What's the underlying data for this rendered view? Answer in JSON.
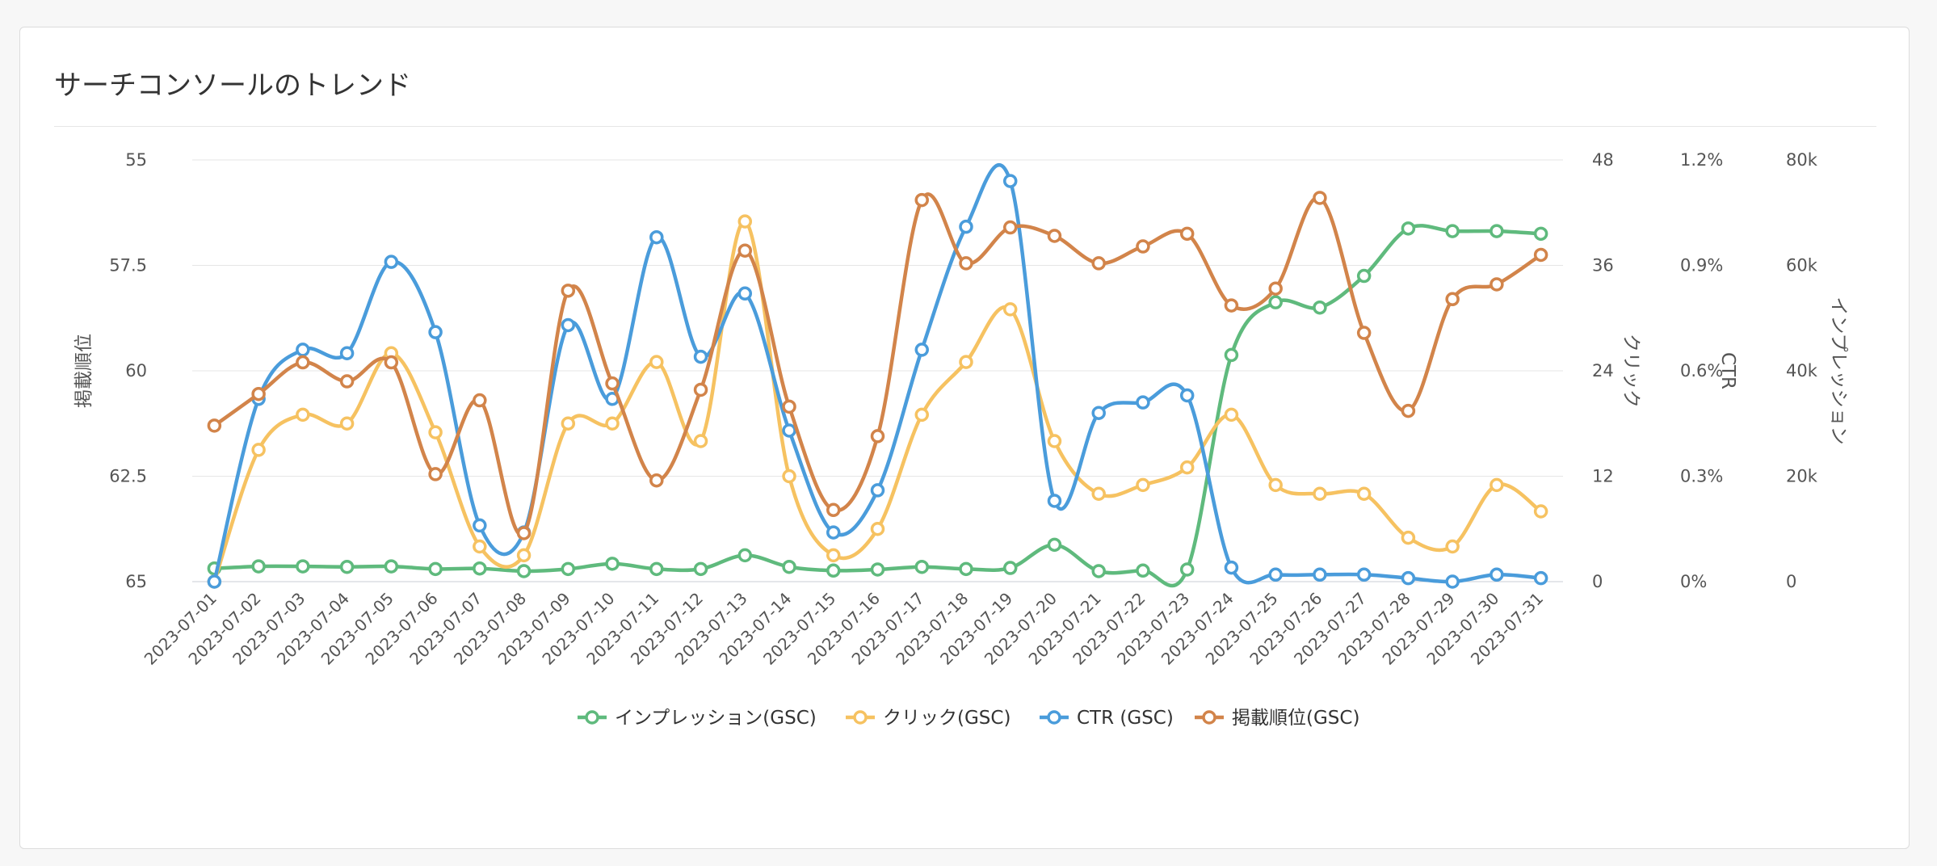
{
  "card": {
    "title": "サーチコンソールのトレンド"
  },
  "chart_data": {
    "type": "line",
    "curve": "smooth",
    "markers": "hollow-circle",
    "grid": true,
    "legend_position": "bottom",
    "categories": [
      "2023-07-01",
      "2023-07-02",
      "2023-07-03",
      "2023-07-04",
      "2023-07-05",
      "2023-07-06",
      "2023-07-07",
      "2023-07-08",
      "2023-07-09",
      "2023-07-10",
      "2023-07-11",
      "2023-07-12",
      "2023-07-13",
      "2023-07-14",
      "2023-07-15",
      "2023-07-16",
      "2023-07-17",
      "2023-07-18",
      "2023-07-19",
      "2023-07-20",
      "2023-07-21",
      "2023-07-22",
      "2023-07-23",
      "2023-07-24",
      "2023-07-25",
      "2023-07-26",
      "2023-07-27",
      "2023-07-28",
      "2023-07-29",
      "2023-07-30",
      "2023-07-31"
    ],
    "axes": {
      "left": {
        "label": "掲載順位",
        "range": [
          55,
          65
        ],
        "reversed": true,
        "ticks": [
          "55",
          "57.5",
          "60",
          "62.5",
          "65"
        ]
      },
      "right1": {
        "label": "クリック",
        "range": [
          0,
          48
        ],
        "ticks": [
          "48",
          "36",
          "24",
          "12",
          "0"
        ]
      },
      "right2": {
        "label": "CTR",
        "range": [
          0,
          1.2
        ],
        "unit": "%",
        "ticks": [
          "1.2%",
          "0.9%",
          "0.6%",
          "0.3%",
          "0%"
        ]
      },
      "right3": {
        "label": "インプレッション",
        "range": [
          0,
          80000
        ],
        "ticks": [
          "80k",
          "60k",
          "40k",
          "20k",
          "0"
        ]
      }
    },
    "series": [
      {
        "name": "インプレッション(GSC)",
        "axis": "right3",
        "color": "#5fba7d",
        "values": [
          2500,
          2900,
          2900,
          2800,
          2900,
          2400,
          2500,
          2000,
          2400,
          3400,
          2400,
          2400,
          5000,
          2800,
          2100,
          2300,
          2800,
          2400,
          2600,
          7000,
          2000,
          2100,
          2300,
          43000,
          53000,
          52000,
          58000,
          67000,
          66500,
          66500,
          66000
        ]
      },
      {
        "name": "クリック(GSC)",
        "axis": "right1",
        "color": "#f6c261",
        "values": [
          0,
          15,
          19,
          18,
          26,
          17,
          4,
          3,
          18,
          18,
          25,
          16,
          41,
          12,
          3,
          6,
          19,
          25,
          31,
          16,
          10,
          11,
          13,
          19,
          11,
          10,
          10,
          5,
          4,
          11,
          8
        ]
      },
      {
        "name": "CTR (GSC)",
        "axis": "right2",
        "color": "#4a9cdb",
        "values": [
          0,
          0.52,
          0.66,
          0.65,
          0.91,
          0.71,
          0.16,
          0.14,
          0.73,
          0.52,
          0.98,
          0.64,
          0.82,
          0.43,
          0.14,
          0.26,
          0.66,
          1.01,
          1.14,
          0.23,
          0.48,
          0.51,
          0.53,
          0.04,
          0.02,
          0.02,
          0.02,
          0.01,
          0.0,
          0.02,
          0.01
        ]
      },
      {
        "name": "掲載順位(GSC)",
        "axis": "left",
        "color": "#d2844a",
        "values": [
          61.3,
          60.55,
          59.8,
          60.25,
          59.8,
          62.45,
          60.7,
          63.85,
          58.1,
          60.3,
          62.6,
          60.45,
          57.15,
          60.85,
          63.3,
          61.55,
          55.95,
          57.45,
          56.6,
          56.8,
          57.45,
          57.05,
          56.75,
          58.45,
          58.05,
          55.9,
          59.1,
          60.95,
          58.3,
          57.95,
          57.25
        ]
      }
    ]
  }
}
